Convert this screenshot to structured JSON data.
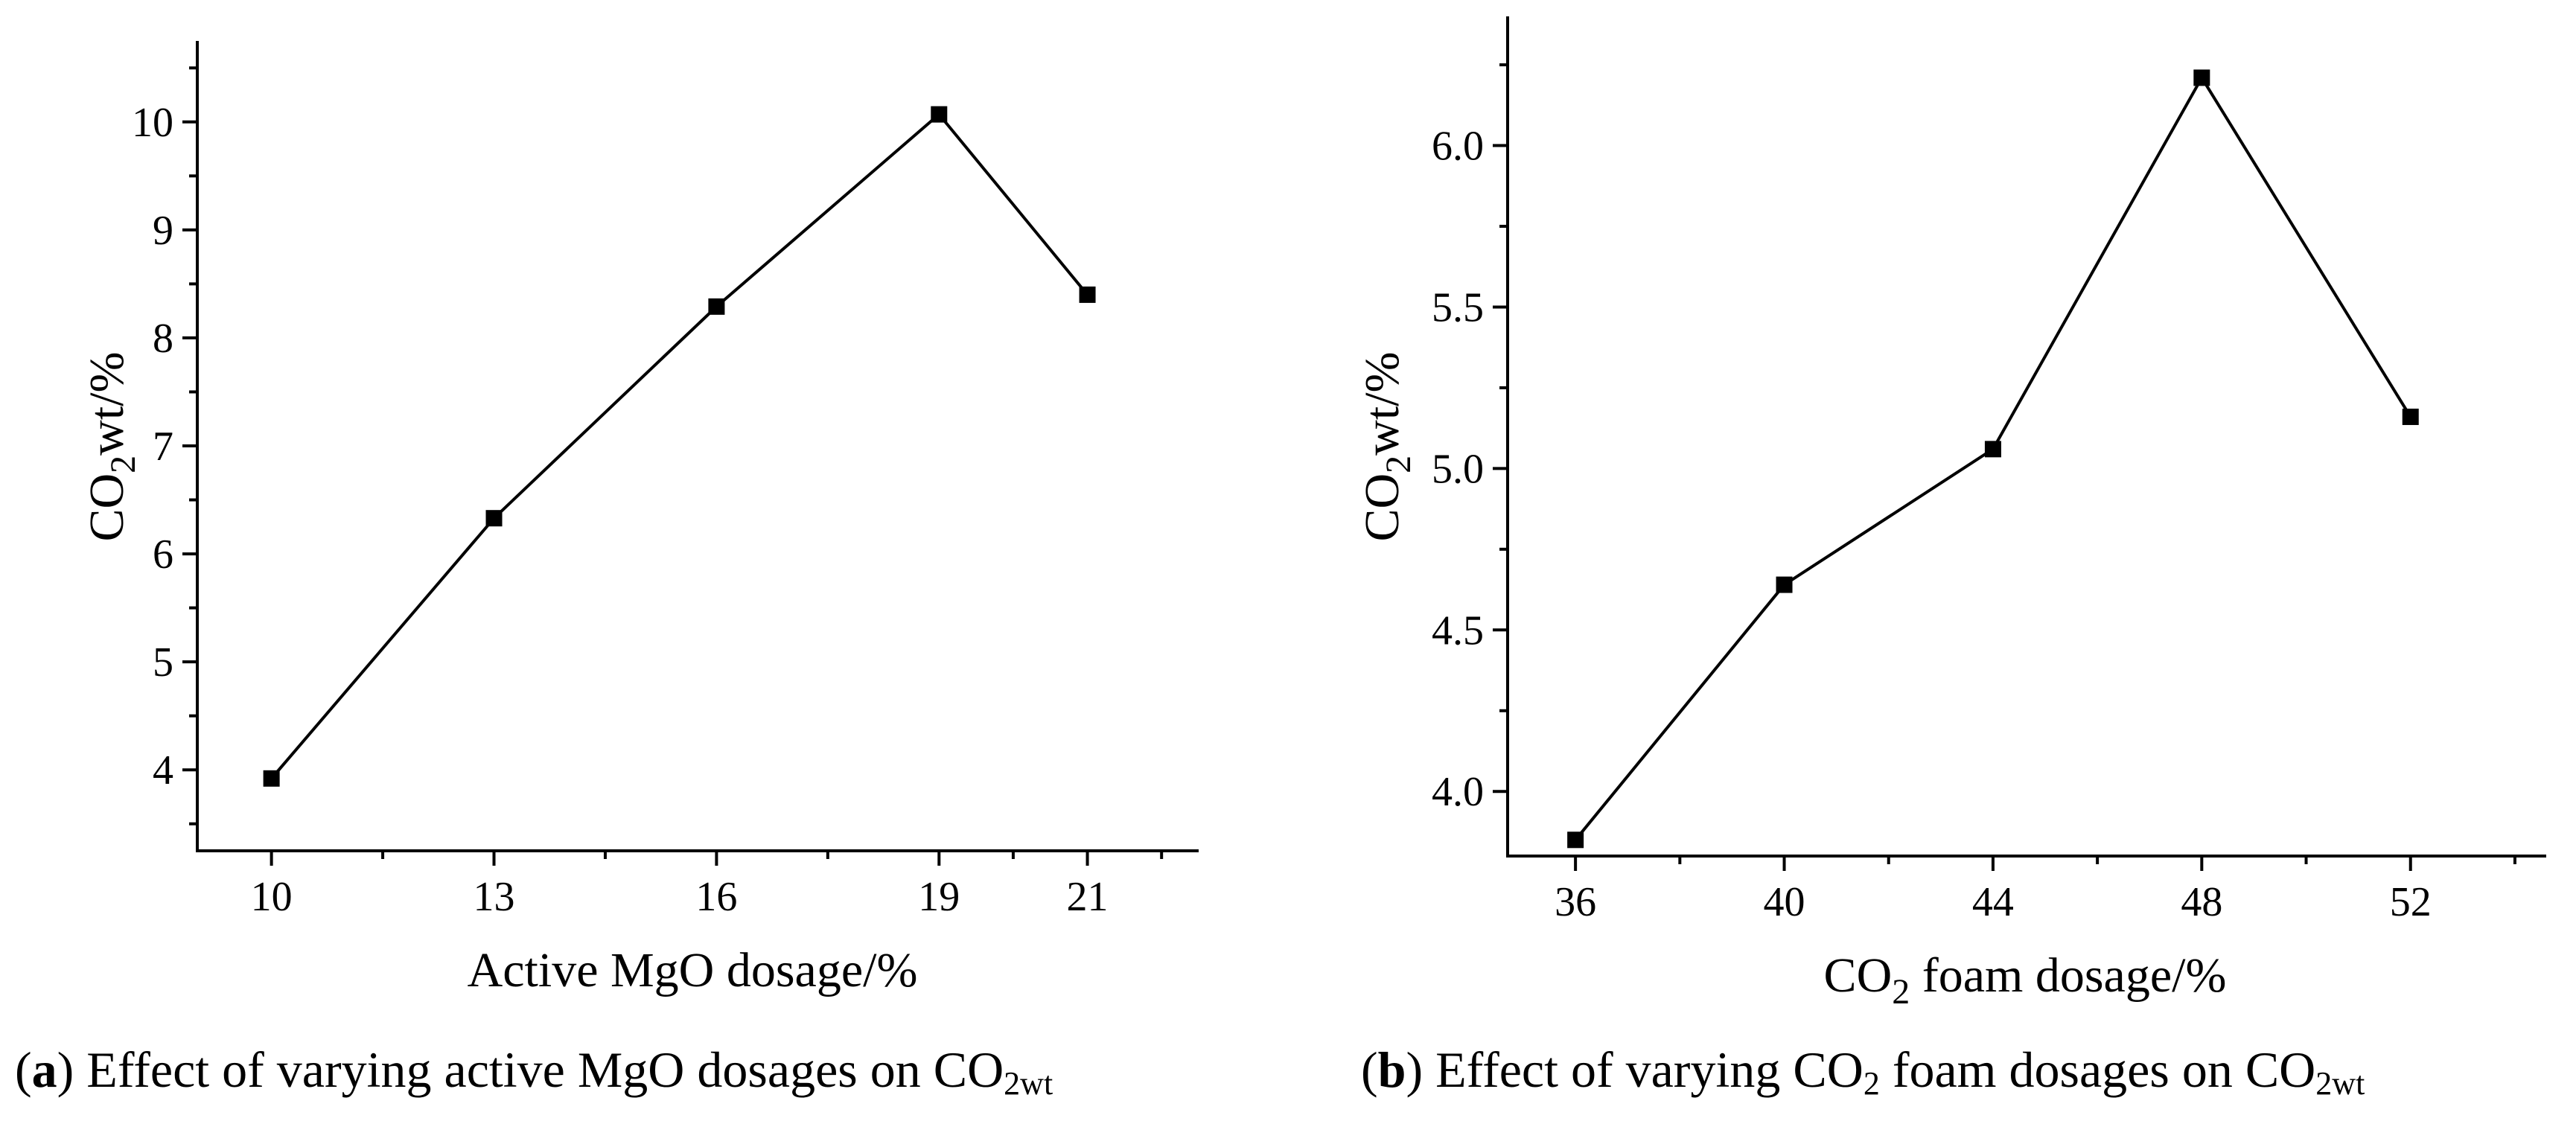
{
  "chart_data": [
    {
      "type": "line",
      "panel": "a",
      "caption_letter": "a",
      "caption_text": ") Effect of varying active MgO dosages on CO",
      "caption_sub": "2wt",
      "xlabel": "Active MgO dosage/%",
      "ylabel_main": "CO",
      "ylabel_sub": "2",
      "ylabel_rest": "wt/%",
      "x": [
        10,
        13,
        16,
        19,
        21
      ],
      "values": [
        3.92,
        6.33,
        8.29,
        10.07,
        8.4
      ],
      "xlim": [
        9,
        22.5
      ],
      "ylim": [
        3.25,
        10.75
      ],
      "xticks": [
        10,
        13,
        16,
        19,
        21
      ],
      "xtick_labels": [
        "10",
        "13",
        "16",
        "19",
        "21"
      ],
      "yticks": [
        4,
        5,
        6,
        7,
        8,
        9,
        10
      ],
      "ytick_labels": [
        "4",
        "5",
        "6",
        "7",
        "8",
        "9",
        "10"
      ]
    },
    {
      "type": "line",
      "panel": "b",
      "caption_letter": "b",
      "caption_text": ") Effect of varying CO",
      "caption_mid_sub": "2",
      "caption_text2": " foam dosages on CO",
      "caption_sub": "2wt",
      "xlabel_main": "CO",
      "xlabel_sub": "2",
      "xlabel_rest": " foam dosage/%",
      "ylabel_main": "CO",
      "ylabel_sub": "2",
      "ylabel_rest": "wt/%",
      "x": [
        36,
        40,
        44,
        48,
        52
      ],
      "values": [
        3.85,
        4.64,
        5.06,
        6.21,
        5.16
      ],
      "xlim": [
        34.7,
        54.6
      ],
      "ylim": [
        3.8,
        6.4
      ],
      "xticks": [
        36,
        40,
        44,
        48,
        52
      ],
      "xtick_labels": [
        "36",
        "40",
        "44",
        "48",
        "52"
      ],
      "yticks": [
        4.0,
        4.5,
        5.0,
        5.5,
        6.0
      ],
      "ytick_labels": [
        "4.0",
        "4.5",
        "5.0",
        "5.5",
        "6.0"
      ]
    }
  ]
}
